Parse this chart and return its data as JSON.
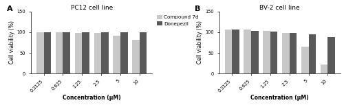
{
  "panel_A": {
    "title": "PC12 cell line",
    "label": "A",
    "categories": [
      "0.3125",
      "0.625",
      "1.25",
      "2.5",
      "5",
      "10"
    ],
    "compound7d": [
      100,
      100,
      99,
      98,
      91,
      82
    ],
    "donepezil": [
      100,
      100,
      100,
      100,
      100,
      100
    ],
    "ylim": [
      0,
      150
    ],
    "yticks": [
      0,
      50,
      100,
      150
    ]
  },
  "panel_B": {
    "title": "BV-2 cell line",
    "label": "B",
    "categories": [
      "0.3125",
      "0.625",
      "1.25",
      "2.5",
      "5",
      "10"
    ],
    "compound7d": [
      106,
      106,
      104,
      98,
      65,
      21
    ],
    "donepezil": [
      106,
      104,
      101,
      99,
      95,
      89
    ],
    "ylim": [
      0,
      150
    ],
    "yticks": [
      0,
      50,
      100,
      150
    ]
  },
  "color_compound7d": "#c8c8c8",
  "color_donepezil": "#595959",
  "ylabel": "Cell viability (%)",
  "xlabel": "Concentration (μM)",
  "bar_width": 0.38,
  "legend_labels": [
    "Compound 7d",
    "Donepezil"
  ],
  "legend_fontsize": 5.2,
  "title_fontsize": 6.5,
  "axis_fontsize": 5.5,
  "tick_fontsize": 4.8,
  "label_fontsize": 8
}
